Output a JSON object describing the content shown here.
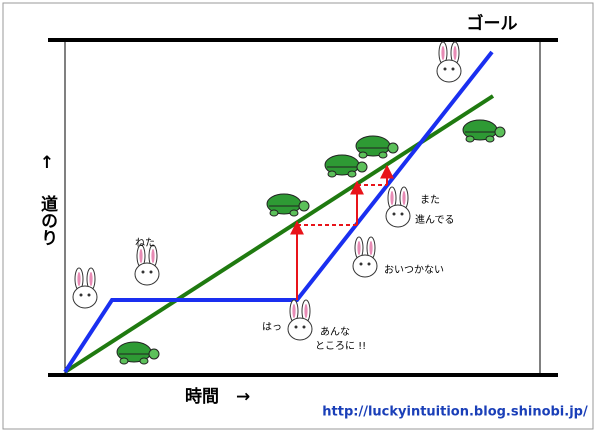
{
  "header": {
    "goal": "ゴール"
  },
  "axes": {
    "y_arrow": "↑",
    "y_label": "道のり",
    "x_label": "時間　→"
  },
  "annotations": {
    "sleeping": "ねた",
    "startled": "はっ",
    "where_1": "あんな",
    "where_2": "ところに !!",
    "again_1": "また",
    "again_2": "進んでる",
    "cant_catch": "おいつかない"
  },
  "footer": {
    "url": "http://luckyintuition.blog.shinobi.jp/"
  }
}
